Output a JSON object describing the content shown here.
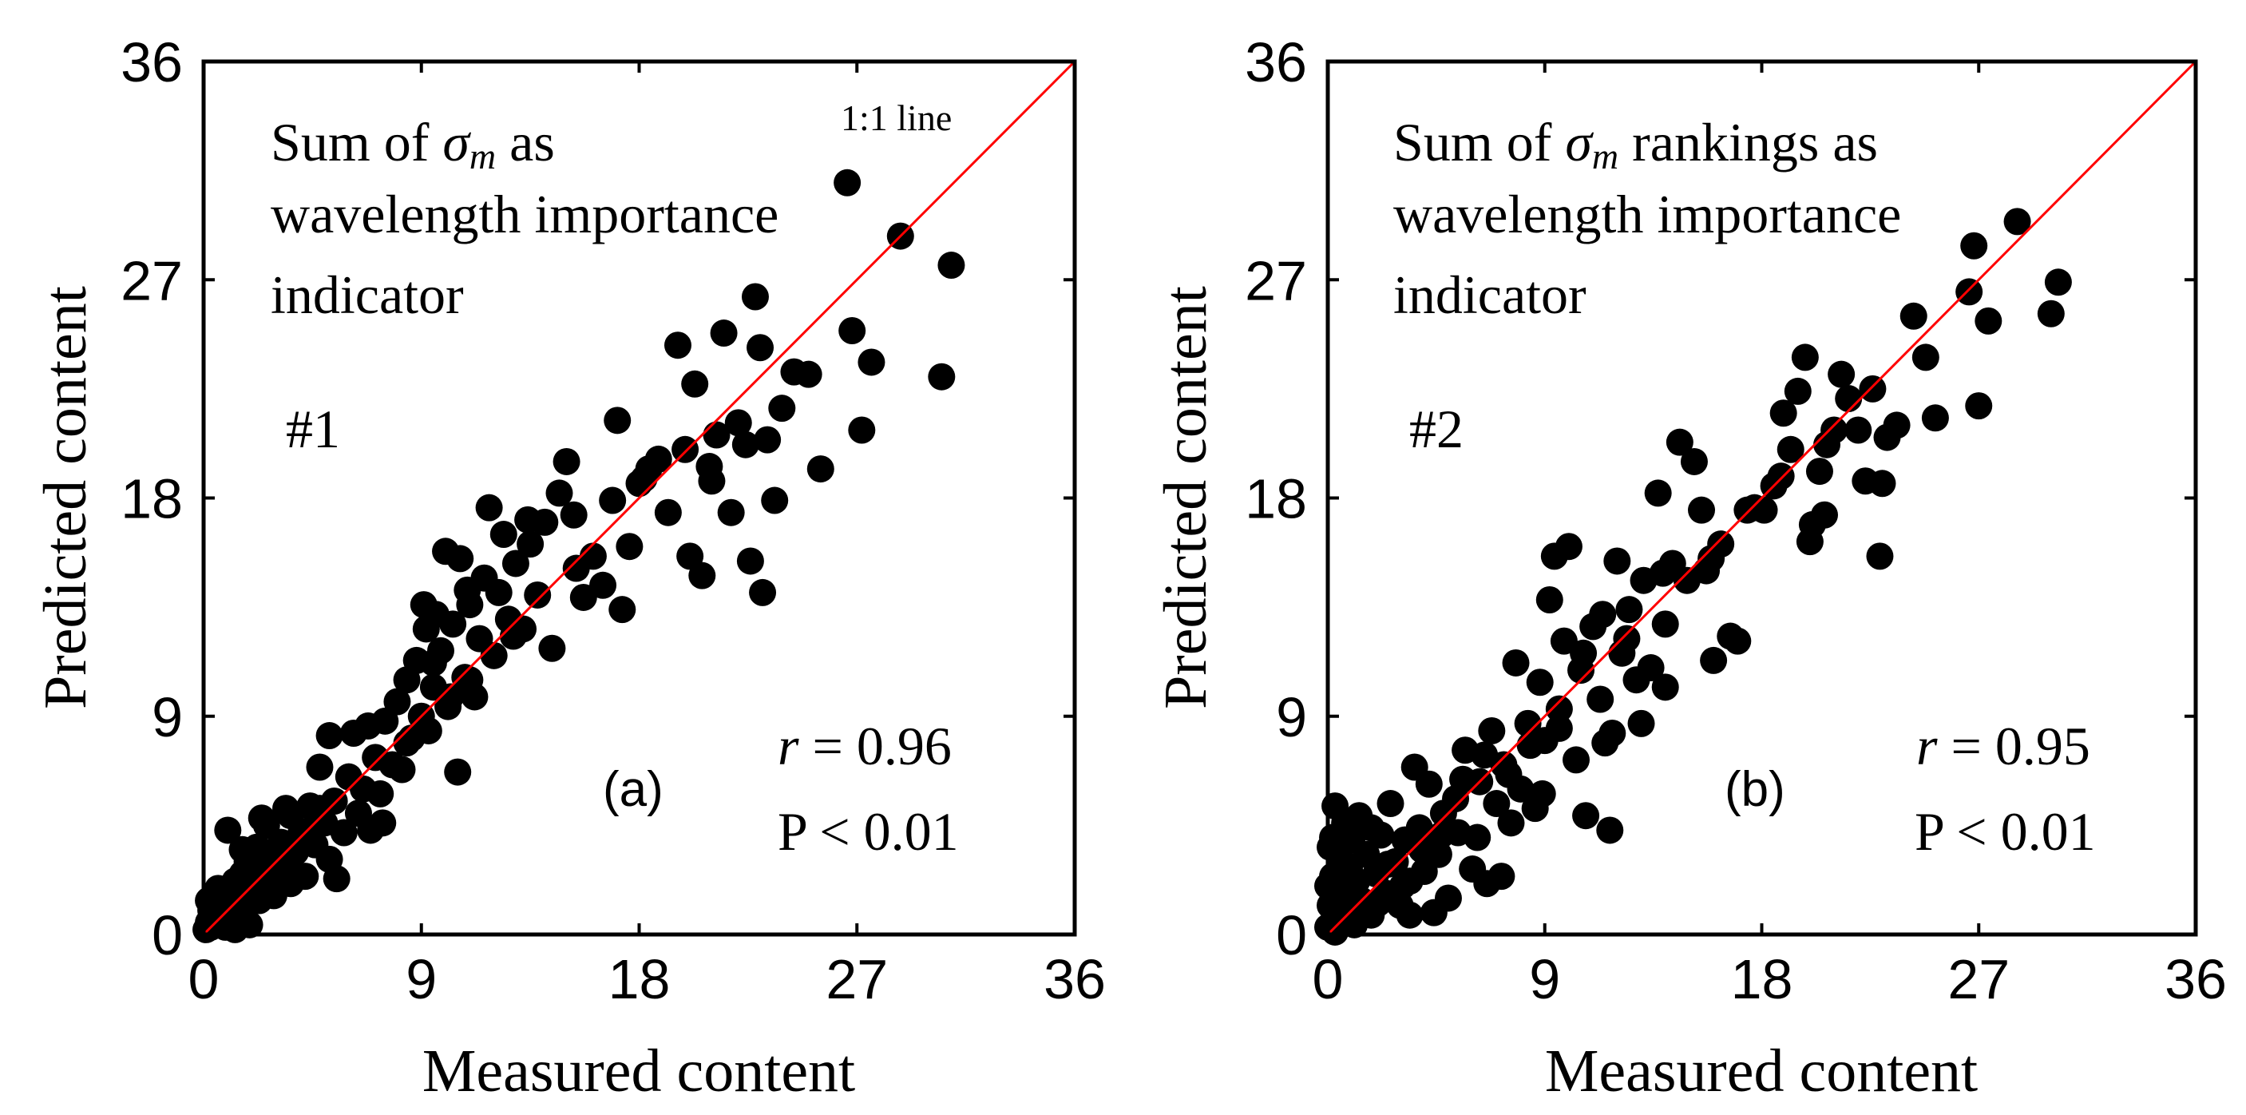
{
  "chart_data": [
    {
      "type": "scatter",
      "panel_label": "(a)",
      "xlabel": "Measured content",
      "ylabel": "Predicted content",
      "xlim": [
        0,
        36
      ],
      "ylim": [
        0,
        36
      ],
      "xticks": [
        "0",
        "9",
        "18",
        "27",
        "36"
      ],
      "yticks": [
        "0",
        "9",
        "18",
        "27",
        "36"
      ],
      "reference_line": {
        "label": "1:1 line",
        "x": [
          0,
          36
        ],
        "y": [
          0,
          36
        ],
        "color": "#ff0000"
      },
      "title_lines": [
        "Sum of σm as",
        "wavelength importance",
        "indicator"
      ],
      "sigma_text": {
        "prefix": "Sum of ",
        "symbol": "σ",
        "subscript": "m",
        "suffix": " as"
      },
      "id_label": "#1",
      "stats": {
        "r_symbol": "r",
        "r_text": " = 0.96",
        "p_text": "P < 0.01"
      },
      "marker_color": "#000000",
      "points": [
        [
          0.1,
          0.2
        ],
        [
          0.2,
          0.5
        ],
        [
          0.3,
          0.3
        ],
        [
          0.3,
          1.0
        ],
        [
          0.4,
          0.8
        ],
        [
          0.5,
          0.4
        ],
        [
          0.6,
          1.2
        ],
        [
          0.7,
          0.6
        ],
        [
          0.8,
          1.5
        ],
        [
          0.9,
          0.9
        ],
        [
          1.0,
          1.8
        ],
        [
          1.1,
          0.5
        ],
        [
          1.2,
          1.3
        ],
        [
          1.3,
          2.2
        ],
        [
          1.4,
          0.8
        ],
        [
          1.5,
          1.6
        ],
        [
          1.6,
          2.5
        ],
        [
          1.7,
          1.1
        ],
        [
          1.8,
          3.0
        ],
        [
          1.9,
          0.4
        ],
        [
          2.0,
          1.9
        ],
        [
          2.1,
          2.7
        ],
        [
          2.2,
          3.6
        ],
        [
          2.3,
          1.4
        ],
        [
          2.5,
          2.4
        ],
        [
          2.6,
          4.5
        ],
        [
          2.8,
          3.3
        ],
        [
          3.0,
          2.0
        ],
        [
          3.2,
          3.8
        ],
        [
          3.4,
          2.8
        ],
        [
          3.6,
          4.9
        ],
        [
          3.8,
          3.4
        ],
        [
          4.0,
          4.1
        ],
        [
          4.2,
          2.4
        ],
        [
          4.4,
          5.3
        ],
        [
          4.6,
          3.7
        ],
        [
          4.8,
          6.9
        ],
        [
          5.0,
          4.6
        ],
        [
          5.2,
          3.1
        ],
        [
          5.4,
          5.5
        ],
        [
          5.5,
          2.3
        ],
        [
          5.8,
          4.2
        ],
        [
          6.0,
          6.5
        ],
        [
          6.2,
          8.3
        ],
        [
          6.4,
          5.0
        ],
        [
          6.6,
          6.0
        ],
        [
          6.9,
          4.3
        ],
        [
          7.1,
          7.3
        ],
        [
          7.3,
          5.8
        ],
        [
          7.5,
          8.8
        ],
        [
          7.8,
          7.0
        ],
        [
          8.0,
          9.6
        ],
        [
          8.2,
          6.8
        ],
        [
          8.4,
          10.5
        ],
        [
          8.6,
          8.1
        ],
        [
          8.8,
          11.3
        ],
        [
          9.0,
          9.0
        ],
        [
          9.2,
          12.6
        ],
        [
          9.3,
          8.4
        ],
        [
          9.5,
          10.2
        ],
        [
          9.6,
          13.2
        ],
        [
          9.8,
          11.7
        ],
        [
          10.0,
          15.8
        ],
        [
          10.1,
          9.4
        ],
        [
          10.3,
          12.8
        ],
        [
          10.5,
          6.7
        ],
        [
          10.6,
          15.5
        ],
        [
          10.8,
          10.6
        ],
        [
          11.0,
          13.6
        ],
        [
          11.2,
          9.8
        ],
        [
          11.4,
          12.2
        ],
        [
          11.6,
          14.7
        ],
        [
          11.8,
          17.6
        ],
        [
          12.0,
          11.5
        ],
        [
          12.2,
          14.1
        ],
        [
          12.4,
          16.5
        ],
        [
          12.6,
          13.0
        ],
        [
          12.9,
          15.3
        ],
        [
          13.2,
          12.6
        ],
        [
          13.5,
          16.1
        ],
        [
          13.8,
          14.0
        ],
        [
          14.1,
          17.0
        ],
        [
          14.4,
          11.8
        ],
        [
          14.7,
          18.2
        ],
        [
          15.0,
          19.5
        ],
        [
          15.3,
          17.3
        ],
        [
          15.7,
          13.9
        ],
        [
          16.1,
          15.6
        ],
        [
          16.5,
          14.4
        ],
        [
          16.9,
          17.9
        ],
        [
          17.1,
          21.2
        ],
        [
          17.3,
          13.4
        ],
        [
          17.6,
          16.0
        ],
        [
          18.0,
          18.6
        ],
        [
          18.4,
          19.2
        ],
        [
          18.8,
          19.6
        ],
        [
          19.2,
          17.4
        ],
        [
          19.6,
          24.3
        ],
        [
          19.9,
          20.0
        ],
        [
          20.1,
          15.6
        ],
        [
          20.3,
          22.7
        ],
        [
          20.6,
          14.8
        ],
        [
          20.9,
          19.3
        ],
        [
          21.2,
          20.6
        ],
        [
          21.5,
          24.8
        ],
        [
          21.8,
          17.4
        ],
        [
          22.1,
          21.1
        ],
        [
          22.4,
          20.2
        ],
        [
          22.8,
          26.3
        ],
        [
          23.0,
          24.2
        ],
        [
          23.1,
          14.1
        ],
        [
          23.3,
          20.4
        ],
        [
          23.6,
          17.9
        ],
        [
          23.9,
          21.7
        ],
        [
          24.4,
          23.2
        ],
        [
          25.0,
          23.1
        ],
        [
          25.5,
          19.2
        ],
        [
          26.6,
          31.0
        ],
        [
          26.8,
          24.9
        ],
        [
          27.2,
          20.8
        ],
        [
          27.6,
          23.6
        ],
        [
          28.8,
          28.8
        ],
        [
          30.5,
          23.0
        ],
        [
          30.9,
          27.6
        ],
        [
          1.0,
          4.3
        ],
        [
          1.6,
          3.5
        ],
        [
          2.4,
          4.8
        ],
        [
          3.4,
          5.2
        ],
        [
          4.4,
          4.3
        ],
        [
          5.2,
          8.2
        ],
        [
          6.8,
          8.6
        ],
        [
          8.4,
          7.9
        ],
        [
          9.5,
          11.2
        ],
        [
          10.2,
          9.8
        ],
        [
          11.0,
          10.5
        ],
        [
          12.8,
          12.3
        ],
        [
          0.6,
          1.9
        ],
        [
          1.3,
          0.2
        ],
        [
          2.9,
          1.6
        ],
        [
          3.6,
          2.1
        ],
        [
          7.4,
          4.6
        ],
        [
          9.1,
          13.6
        ],
        [
          10.9,
          14.2
        ],
        [
          13.4,
          17.1
        ],
        [
          15.4,
          15.1
        ],
        [
          18.2,
          18.8
        ],
        [
          21.0,
          18.7
        ],
        [
          22.6,
          15.4
        ],
        [
          0.2,
          1.4
        ],
        [
          0.9,
          0.3
        ],
        [
          1.8,
          2.3
        ],
        [
          4.8,
          5.2
        ]
      ]
    },
    {
      "type": "scatter",
      "panel_label": "(b)",
      "xlabel": "Measured content",
      "ylabel": "Predicted content",
      "xlim": [
        0,
        36
      ],
      "ylim": [
        0,
        36
      ],
      "xticks": [
        "0",
        "9",
        "18",
        "27",
        "36"
      ],
      "yticks": [
        "0",
        "9",
        "18",
        "27",
        "36"
      ],
      "reference_line": {
        "x": [
          0,
          36
        ],
        "y": [
          0,
          36
        ],
        "color": "#ff0000"
      },
      "title_lines": [
        "Sum of σm rankings as",
        "wavelength importance",
        "indicator"
      ],
      "sigma_text": {
        "prefix": "Sum of ",
        "symbol": "σ",
        "subscript": "m",
        "suffix": " rankings as"
      },
      "id_label": "#2",
      "stats": {
        "r_symbol": "r",
        "r_text": " = 0.95",
        "p_text": "P < 0.01"
      },
      "marker_color": "#000000",
      "points": [
        [
          0.0,
          0.3
        ],
        [
          0.1,
          1.2
        ],
        [
          0.2,
          2.4
        ],
        [
          0.2,
          4.0
        ],
        [
          0.3,
          5.3
        ],
        [
          0.4,
          0.6
        ],
        [
          0.5,
          3.1
        ],
        [
          0.6,
          1.6
        ],
        [
          0.7,
          4.6
        ],
        [
          0.8,
          0.9
        ],
        [
          0.9,
          2.8
        ],
        [
          1.0,
          3.9
        ],
        [
          1.1,
          0.4
        ],
        [
          1.2,
          2.2
        ],
        [
          1.3,
          4.9
        ],
        [
          1.4,
          1.4
        ],
        [
          1.6,
          3.3
        ],
        [
          1.8,
          0.8
        ],
        [
          2.0,
          2.5
        ],
        [
          2.2,
          4.1
        ],
        [
          2.4,
          1.7
        ],
        [
          2.6,
          5.4
        ],
        [
          2.8,
          3.0
        ],
        [
          3.0,
          1.2
        ],
        [
          3.2,
          3.9
        ],
        [
          3.4,
          2.2
        ],
        [
          3.6,
          6.9
        ],
        [
          3.8,
          4.4
        ],
        [
          4.0,
          2.6
        ],
        [
          4.2,
          6.2
        ],
        [
          4.4,
          0.9
        ],
        [
          4.6,
          3.3
        ],
        [
          4.8,
          5.0
        ],
        [
          5.0,
          1.5
        ],
        [
          5.4,
          4.2
        ],
        [
          5.7,
          7.6
        ],
        [
          6.0,
          2.7
        ],
        [
          6.3,
          6.3
        ],
        [
          6.6,
          2.1
        ],
        [
          6.8,
          8.4
        ],
        [
          7.0,
          5.4
        ],
        [
          7.3,
          7.0
        ],
        [
          7.6,
          4.6
        ],
        [
          7.8,
          11.2
        ],
        [
          8.0,
          6.0
        ],
        [
          8.3,
          8.7
        ],
        [
          8.6,
          5.2
        ],
        [
          8.8,
          10.4
        ],
        [
          9.0,
          8.0
        ],
        [
          9.2,
          13.8
        ],
        [
          9.4,
          15.6
        ],
        [
          9.6,
          9.3
        ],
        [
          9.8,
          12.1
        ],
        [
          10.0,
          16.0
        ],
        [
          10.3,
          7.2
        ],
        [
          10.5,
          10.9
        ],
        [
          10.7,
          4.9
        ],
        [
          11.0,
          12.7
        ],
        [
          11.3,
          9.7
        ],
        [
          11.5,
          7.9
        ],
        [
          11.7,
          4.3
        ],
        [
          12.0,
          15.4
        ],
        [
          12.2,
          11.6
        ],
        [
          12.5,
          13.4
        ],
        [
          12.8,
          10.5
        ],
        [
          13.1,
          14.6
        ],
        [
          13.4,
          11.0
        ],
        [
          13.7,
          18.2
        ],
        [
          14.0,
          12.8
        ],
        [
          14.3,
          15.3
        ],
        [
          14.6,
          20.3
        ],
        [
          14.9,
          14.6
        ],
        [
          15.2,
          19.5
        ],
        [
          15.5,
          17.5
        ],
        [
          15.9,
          15.5
        ],
        [
          16.3,
          16.1
        ],
        [
          16.7,
          12.3
        ],
        [
          17.0,
          12.1
        ],
        [
          17.4,
          17.5
        ],
        [
          17.7,
          17.6
        ],
        [
          18.1,
          17.5
        ],
        [
          18.5,
          18.5
        ],
        [
          18.9,
          21.5
        ],
        [
          19.2,
          20.0
        ],
        [
          19.5,
          22.4
        ],
        [
          19.8,
          23.8
        ],
        [
          20.0,
          16.2
        ],
        [
          20.1,
          16.9
        ],
        [
          20.4,
          19.1
        ],
        [
          20.7,
          20.2
        ],
        [
          21.0,
          20.8
        ],
        [
          21.3,
          23.1
        ],
        [
          21.6,
          22.1
        ],
        [
          22.0,
          20.8
        ],
        [
          22.3,
          18.7
        ],
        [
          22.6,
          22.5
        ],
        [
          22.9,
          15.6
        ],
        [
          23.2,
          20.5
        ],
        [
          23.6,
          21.0
        ],
        [
          24.3,
          25.5
        ],
        [
          24.8,
          23.8
        ],
        [
          25.2,
          21.3
        ],
        [
          26.6,
          26.5
        ],
        [
          26.8,
          28.4
        ],
        [
          27.0,
          21.8
        ],
        [
          27.4,
          25.3
        ],
        [
          28.6,
          29.4
        ],
        [
          30.0,
          25.6
        ],
        [
          30.3,
          26.9
        ],
        [
          0.3,
          0.1
        ],
        [
          0.6,
          0.5
        ],
        [
          1.5,
          1.1
        ],
        [
          2.1,
          1.3
        ],
        [
          3.1,
          2.0
        ],
        [
          3.9,
          3.5
        ],
        [
          4.7,
          4.1
        ],
        [
          5.6,
          6.4
        ],
        [
          6.5,
          7.4
        ],
        [
          7.5,
          6.6
        ],
        [
          8.4,
          7.8
        ],
        [
          9.6,
          8.5
        ],
        [
          10.6,
          11.6
        ],
        [
          11.4,
          13.2
        ],
        [
          12.4,
          12.2
        ],
        [
          13.9,
          14.9
        ],
        [
          15.7,
          15.0
        ],
        [
          0.0,
          2.0
        ],
        [
          0.1,
          3.6
        ],
        [
          0.4,
          1.9
        ],
        [
          1.0,
          0.7
        ],
        [
          1.8,
          4.4
        ],
        [
          2.5,
          2.9
        ],
        [
          3.4,
          0.8
        ],
        [
          5.3,
          5.6
        ],
        [
          6.2,
          4.0
        ],
        [
          7.2,
          2.4
        ],
        [
          8.9,
          5.8
        ],
        [
          11.8,
          8.3
        ],
        [
          13.0,
          8.7
        ],
        [
          14.0,
          10.2
        ],
        [
          16.0,
          11.3
        ],
        [
          18.8,
          18.9
        ],
        [
          20.6,
          17.3
        ],
        [
          23.0,
          18.6
        ]
      ]
    }
  ]
}
